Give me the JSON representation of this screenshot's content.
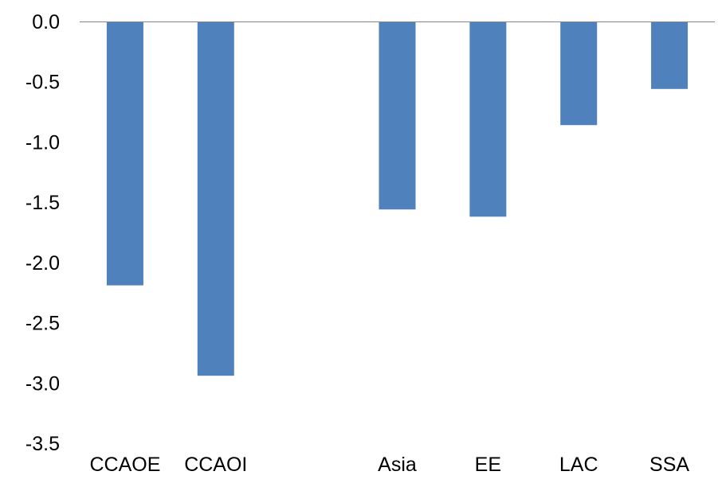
{
  "chart_data": {
    "type": "bar",
    "title": "",
    "xlabel": "",
    "ylabel": "",
    "categories": [
      "CCAOE",
      "CCAOI",
      "",
      "Asia",
      "EE",
      "LAC",
      "SSA"
    ],
    "values": [
      -2.19,
      -2.94,
      null,
      -1.56,
      -1.62,
      -0.86,
      -0.56
    ],
    "ylim": [
      -3.5,
      0.0
    ],
    "yticks": [
      "0.0",
      "-0.5",
      "-1.0",
      "-1.5",
      "-2.0",
      "-2.5",
      "-3.0",
      "-3.5"
    ],
    "grid": false,
    "legend": "none",
    "bar_color": "#4f81bd",
    "axis_color": "#868686"
  }
}
